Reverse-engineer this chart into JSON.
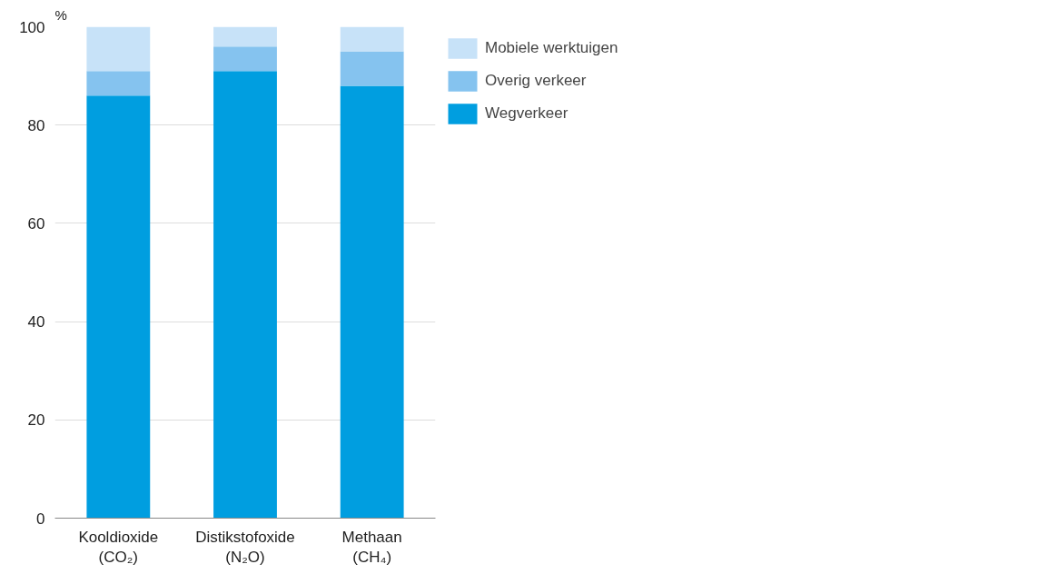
{
  "chart_data": {
    "type": "bar",
    "stacked": true,
    "ylabel": "%",
    "categories": [
      "Kooldioxide\n(CO₂)",
      "Distikstofoxide\n(N₂O)",
      "Methaan\n(CH₄)"
    ],
    "series": [
      {
        "name": "Wegverkeer",
        "color": "#009ee0",
        "values": [
          86,
          91,
          88
        ]
      },
      {
        "name": "Overig verkeer",
        "color": "#85c3ef",
        "values": [
          5,
          5,
          7
        ]
      },
      {
        "name": "Mobiele werktuigen",
        "color": "#c7e2f8",
        "values": [
          9,
          4,
          5
        ]
      }
    ],
    "ylim": [
      0,
      100
    ],
    "yticks": [
      0,
      20,
      40,
      60,
      80,
      100
    ],
    "grid": "y",
    "legend": "top right"
  }
}
